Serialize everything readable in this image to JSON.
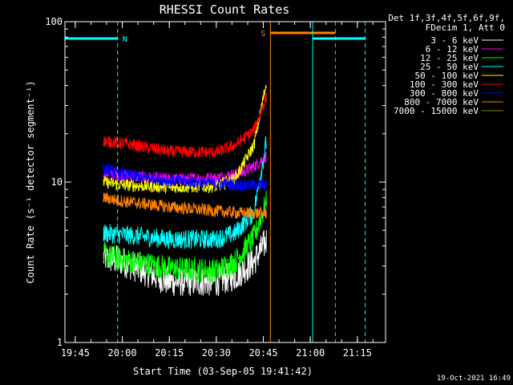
{
  "chart_data": {
    "type": "line",
    "title": "RHESSI Count Rates",
    "xlabel": "Start Time (03-Sep-05 19:41:42)",
    "ylabel": "Count Rate (s⁻¹ detector segment⁻¹)",
    "y_scale": "log",
    "ylim": [
      1,
      100
    ],
    "xlim": [
      "19:41:42",
      "21:24:00"
    ],
    "x_ticks": [
      "19:45",
      "20:00",
      "20:15",
      "20:30",
      "20:45",
      "21:00",
      "21:15"
    ],
    "y_ticks": [
      "1",
      "10",
      "100"
    ],
    "legend_header": [
      "Det 1f,3f,4f,5f,6f,9f,",
      "FDecim 1, Att 0"
    ],
    "legend_position": "top-right, outside plot",
    "footer_date": "19-Oct-2021 16:49",
    "markers": [
      {
        "label": "N",
        "color": "#00ffff",
        "start": "19:41:42",
        "end": "19:58:30",
        "solid_line": null,
        "dashed_line": "19:58:30"
      },
      {
        "label": "S",
        "color": "#ff8000",
        "start": "20:47:15",
        "end": "21:08:00",
        "solid_line": "20:47:15",
        "dashed_line": "21:08:00"
      },
      {
        "label": "",
        "color": "#00ffff",
        "start": "21:00:45",
        "end": "21:17:30",
        "solid_line": "21:00:45",
        "dashed_line": "21:17:30"
      }
    ],
    "series": [
      {
        "name": "3 - 6 keV",
        "color": "#ffffff",
        "x": [
          "19:54",
          "20:00",
          "20:15",
          "20:30",
          "20:36",
          "20:42",
          "20:46"
        ],
        "y": [
          3.4,
          3.2,
          2.4,
          2.4,
          2.6,
          3.2,
          4.3
        ]
      },
      {
        "name": "6 - 12 keV",
        "color": "#ff00ff",
        "x": [
          "19:54",
          "20:00",
          "20:15",
          "20:30",
          "20:38",
          "20:42",
          "20:46"
        ],
        "y": [
          11.5,
          11.0,
          10.4,
          10.6,
          11.4,
          12.5,
          14.5
        ]
      },
      {
        "name": "12 - 25 keV",
        "color": "#00ff00",
        "x": [
          "19:54",
          "20:00",
          "20:15",
          "20:30",
          "20:36",
          "20:42",
          "20:46"
        ],
        "y": [
          3.5,
          3.3,
          2.9,
          2.8,
          3.2,
          4.5,
          7.5
        ]
      },
      {
        "name": "25 - 50 keV",
        "color": "#00ffff",
        "x": [
          "19:54",
          "20:00",
          "20:15",
          "20:30",
          "20:36",
          "20:42",
          "20:46"
        ],
        "y": [
          4.8,
          4.7,
          4.4,
          4.4,
          4.8,
          6.5,
          18
        ]
      },
      {
        "name": "50 - 100 keV",
        "color": "#ffff00",
        "x": [
          "19:54",
          "20:00",
          "20:15",
          "20:30",
          "20:36",
          "20:42",
          "20:46"
        ],
        "y": [
          10.0,
          9.6,
          9.3,
          9.4,
          10.5,
          17,
          42
        ]
      },
      {
        "name": "100 - 300 keV",
        "color": "#ff0000",
        "x": [
          "19:54",
          "20:00",
          "20:15",
          "20:30",
          "20:36",
          "20:42",
          "20:46"
        ],
        "y": [
          18,
          17.5,
          15.5,
          15.3,
          17,
          21,
          34
        ]
      },
      {
        "name": "300 - 800 keV",
        "color": "#0000ff",
        "x": [
          "19:54",
          "20:00",
          "20:15",
          "20:30",
          "20:38",
          "20:46"
        ],
        "y": [
          12,
          11.2,
          10.2,
          9.8,
          9.6,
          9.6
        ]
      },
      {
        "name": "800 - 7000 keV",
        "color": "#ff8000",
        "x": [
          "19:54",
          "20:00",
          "20:15",
          "20:30",
          "20:38",
          "20:46"
        ],
        "y": [
          8.0,
          7.6,
          7.0,
          6.6,
          6.4,
          6.4
        ]
      },
      {
        "name": "7000 - 15000 keV",
        "color": "#808000",
        "x": [],
        "y": []
      }
    ]
  }
}
